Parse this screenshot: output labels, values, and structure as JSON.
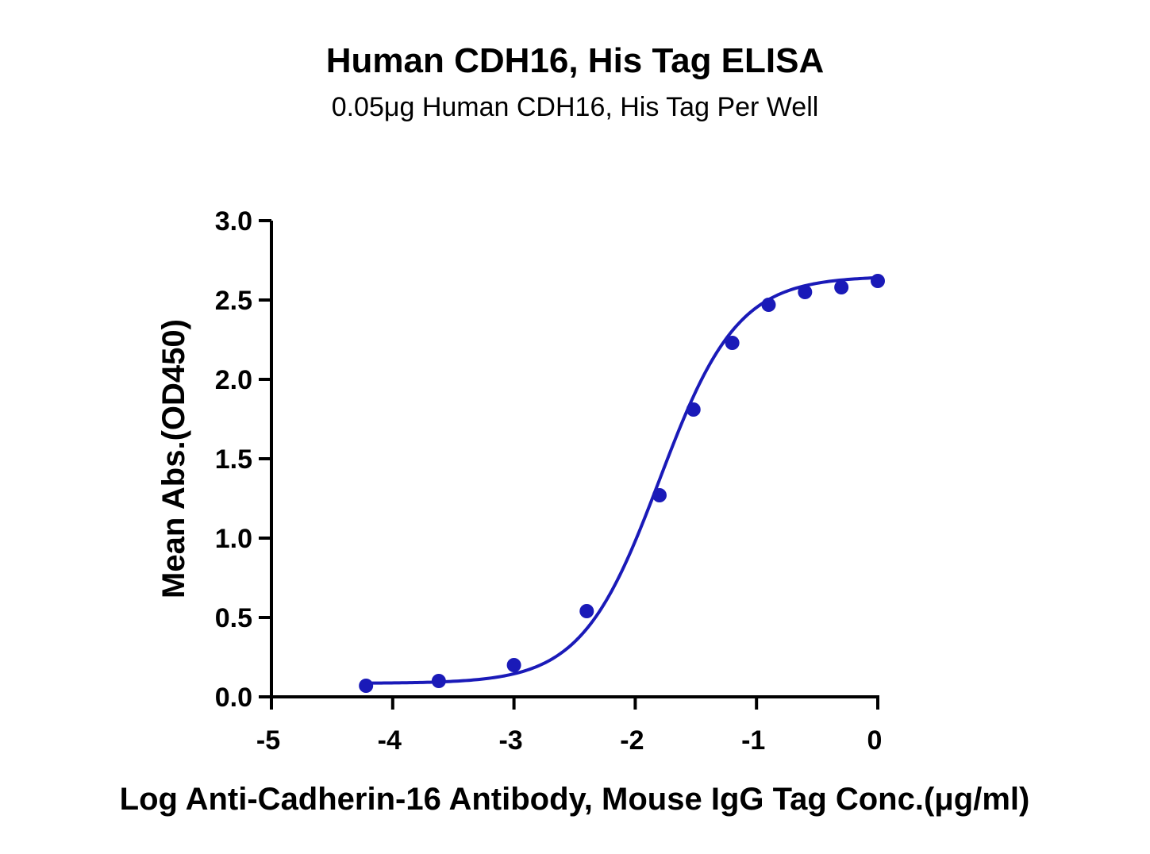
{
  "chart_data": {
    "type": "scatter",
    "title": "Human CDH16, His Tag ELISA",
    "subtitle": "0.05μg Human CDH16, His Tag Per Well",
    "xlabel": "Log Anti-Cadherin-16 Antibody, Mouse IgG Tag Conc.(μg/ml)",
    "ylabel": "Mean Abs.(OD450)",
    "xlim": [
      -5,
      0
    ],
    "ylim": [
      0,
      3
    ],
    "xticks": [
      -5,
      -4,
      -3,
      -2,
      -1,
      0
    ],
    "xtick_labels": [
      "-5",
      "-4",
      "-3",
      "-2",
      "-1",
      "0"
    ],
    "yticks": [
      0,
      0.5,
      1,
      1.5,
      2,
      2.5,
      3
    ],
    "ytick_labels": [
      "0.0",
      "0.5",
      "1.0",
      "1.5",
      "2.0",
      "2.5",
      "3.0"
    ],
    "grid": false,
    "color": "#1a1ab8",
    "series": [
      {
        "x": [
          -4.22,
          -3.62,
          -3.0,
          -2.4,
          -1.8,
          -1.52,
          -1.2,
          -0.9,
          -0.6,
          -0.3,
          0.0
        ],
        "y": [
          0.07,
          0.1,
          0.2,
          0.54,
          1.27,
          1.81,
          2.23,
          2.47,
          2.55,
          2.58,
          2.62
        ],
        "fit": "sigmoid"
      }
    ]
  }
}
